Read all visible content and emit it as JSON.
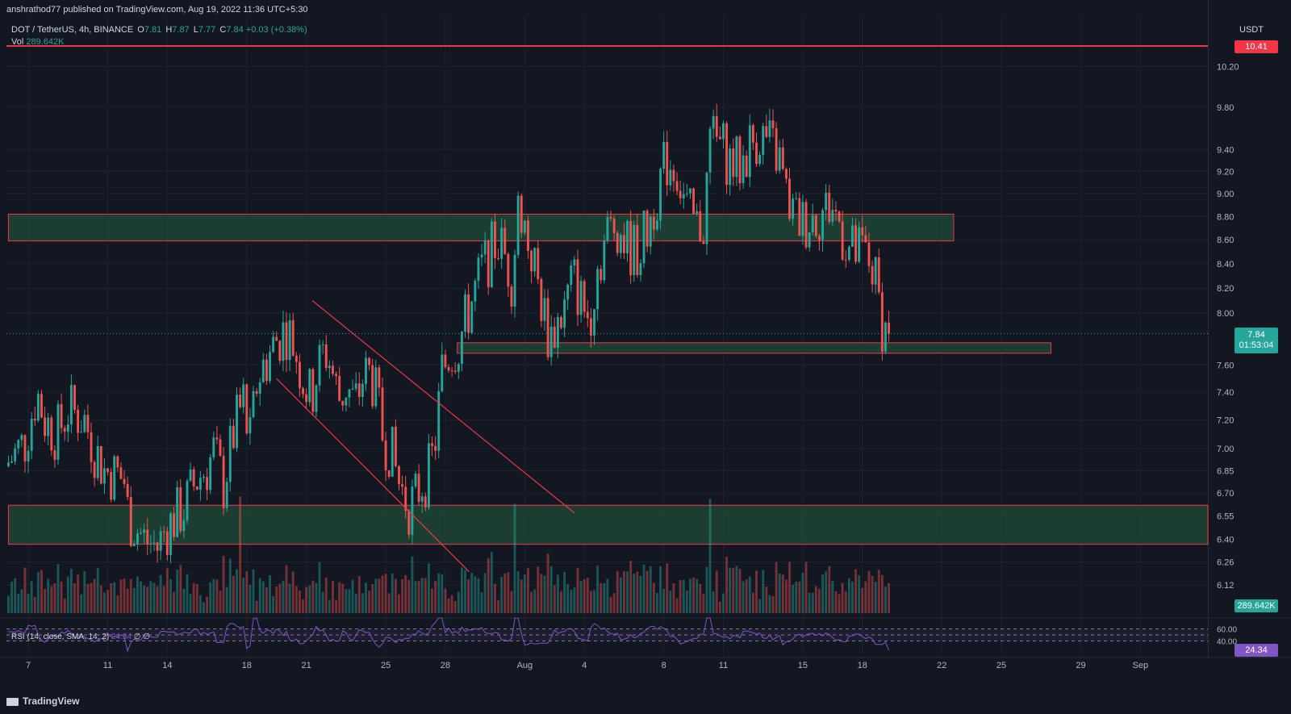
{
  "header": {
    "publisher": "anshrathod77 published on TradingView.com, Aug 19, 2022 11:36 UTC+5:30",
    "symbol": "DOT / TetherUS, 4h, BINANCE",
    "open_label": "O",
    "open": "7.81",
    "high_label": "H",
    "high": "7.87",
    "low_label": "L",
    "low": "7.77",
    "close_label": "C",
    "close": "7.84",
    "change": "+0.03 (+0.38%)",
    "volume_label": "Vol",
    "volume": "289.642K",
    "currency": "USDT"
  },
  "rsi": {
    "label": "RSI (14, close, SMA, 14, 2)",
    "value": "24.34",
    "extra": "∅ ∅",
    "ticks": [
      "60.00",
      "40.00"
    ]
  },
  "badges": {
    "resistance": "10.41",
    "last_price": "7.84",
    "countdown": "01:53:04",
    "volume": "289.642K",
    "rsi": "24.34"
  },
  "footer": {
    "logo_text": "TradingView"
  },
  "colors": {
    "background": "#131722",
    "bullish": "#26a69a",
    "bearish": "#ef5350",
    "zone_fill": "#1f4535",
    "zone_border": "#f23645",
    "rsi_line": "#7e57c2"
  },
  "chart_data": {
    "type": "candlestick",
    "symbol": "DOT/USDT",
    "timeframe": "4h",
    "y_scale": "log",
    "ylim": [
      6.0,
      10.6
    ],
    "y_ticks": [
      "10.20",
      "9.80",
      "9.40",
      "9.20",
      "9.00",
      "8.80",
      "8.60",
      "8.40",
      "8.20",
      "8.00",
      "7.60",
      "7.40",
      "7.20",
      "7.00",
      "6.85",
      "6.70",
      "6.55",
      "6.40",
      "6.26",
      "6.12"
    ],
    "x_ticks": [
      "7",
      "11",
      "14",
      "18",
      "21",
      "25",
      "28",
      "Aug",
      "4",
      "8",
      "11",
      "15",
      "18",
      "22",
      "25",
      "29",
      "Sep"
    ],
    "x_tick_days": [
      -24,
      -20,
      -17,
      -13,
      -10,
      -6,
      -3,
      1,
      4,
      8,
      11,
      15,
      18,
      22,
      25,
      29,
      32
    ],
    "x_range_days": [
      -25.1,
      35.4
    ],
    "last_bar_day": 19.4,
    "price_path": [
      [
        -25,
        6.88
      ],
      [
        -24,
        7.05
      ],
      [
        -23.4,
        7.4
      ],
      [
        -23,
        7.2
      ],
      [
        -22.4,
        7.1
      ],
      [
        -21.8,
        7.28
      ],
      [
        -21,
        7.2
      ],
      [
        -20.5,
        7.0
      ],
      [
        -20,
        6.85
      ],
      [
        -19.3,
        6.82
      ],
      [
        -19,
        6.78
      ],
      [
        -18.8,
        6.55
      ],
      [
        -18,
        6.4
      ],
      [
        -17.3,
        6.35
      ],
      [
        -17,
        6.45
      ],
      [
        -16.4,
        6.55
      ],
      [
        -16,
        6.6
      ],
      [
        -15.4,
        6.78
      ],
      [
        -14.8,
        6.88
      ],
      [
        -14.5,
        6.98
      ],
      [
        -14,
        6.75
      ],
      [
        -13.5,
        7.1
      ],
      [
        -13,
        7.35
      ],
      [
        -12.7,
        7.0
      ],
      [
        -12.3,
        7.5
      ],
      [
        -11.8,
        7.65
      ],
      [
        -11.3,
        7.8
      ],
      [
        -10.8,
        7.88
      ],
      [
        -10.4,
        7.72
      ],
      [
        -10,
        7.5
      ],
      [
        -9.6,
        7.35
      ],
      [
        -9.3,
        7.55
      ],
      [
        -8.9,
        7.72
      ],
      [
        -8.6,
        7.6
      ],
      [
        -8.2,
        7.35
      ],
      [
        -7.8,
        7.45
      ],
      [
        -7.4,
        7.3
      ],
      [
        -7,
        7.5
      ],
      [
        -6.6,
        7.55
      ],
      [
        -6.3,
        7.35
      ],
      [
        -6,
        7.1
      ],
      [
        -5.6,
        7.0
      ],
      [
        -5.2,
        6.78
      ],
      [
        -4.7,
        6.62
      ],
      [
        -4.4,
        6.65
      ],
      [
        -4.0,
        6.78
      ],
      [
        -3.6,
        6.85
      ],
      [
        -3.3,
        7.1
      ],
      [
        -3.0,
        7.55
      ],
      [
        -2.6,
        7.7
      ],
      [
        -2.2,
        7.75
      ],
      [
        -1.8,
        7.95
      ],
      [
        -1.4,
        8.15
      ],
      [
        -1.0,
        8.35
      ],
      [
        -0.6,
        8.48
      ],
      [
        -0.2,
        8.6
      ],
      [
        0.2,
        8.45
      ],
      [
        0.5,
        8.3
      ],
      [
        0.9,
        8.95
      ],
      [
        1.3,
        8.6
      ],
      [
        1.6,
        8.42
      ],
      [
        2.0,
        8.1
      ],
      [
        2.4,
        7.8
      ],
      [
        2.8,
        7.92
      ],
      [
        3.2,
        8.05
      ],
      [
        3.6,
        8.3
      ],
      [
        4.0,
        8.1
      ],
      [
        4.4,
        7.95
      ],
      [
        4.8,
        8.35
      ],
      [
        5.3,
        8.65
      ],
      [
        5.8,
        8.75
      ],
      [
        6.3,
        8.55
      ],
      [
        6.8,
        8.5
      ],
      [
        7.3,
        8.65
      ],
      [
        7.8,
        9.0
      ],
      [
        8.3,
        9.3
      ],
      [
        8.8,
        9.25
      ],
      [
        9.3,
        8.85
      ],
      [
        9.8,
        8.7
      ],
      [
        10.2,
        8.75
      ],
      [
        10.5,
        9.5
      ],
      [
        11,
        9.45
      ],
      [
        11.5,
        9.3
      ],
      [
        12,
        9.25
      ],
      [
        12.5,
        9.45
      ],
      [
        13,
        9.55
      ],
      [
        13.5,
        9.45
      ],
      [
        14,
        9.3
      ],
      [
        14.3,
        9.0
      ],
      [
        14.7,
        8.8
      ],
      [
        15.2,
        8.75
      ],
      [
        15.7,
        8.8
      ],
      [
        16.2,
        8.85
      ],
      [
        16.6,
        8.9
      ],
      [
        17.0,
        8.75
      ],
      [
        17.4,
        8.55
      ],
      [
        17.8,
        8.48
      ],
      [
        18.2,
        8.5
      ],
      [
        18.6,
        8.4
      ],
      [
        18.9,
        8.2
      ],
      [
        19.2,
        7.9
      ],
      [
        19.4,
        7.84
      ]
    ],
    "volume": {
      "unit": "K",
      "spikes": [
        [
          "Jul 19",
          "high"
        ],
        [
          "Aug 1",
          "high"
        ],
        [
          "Aug 10",
          "high"
        ]
      ],
      "last": "289.642K"
    },
    "rsi": {
      "period": 14,
      "last": 24.34,
      "upper": 60,
      "lower": 40
    },
    "annotations": {
      "resistance_line": 10.41,
      "last_price": 7.84,
      "zones": [
        {
          "low": 8.59,
          "high": 8.82,
          "from_day": -25,
          "to_day": 22.6
        },
        {
          "low": 7.69,
          "high": 7.77,
          "from_day": -2.4,
          "to_day": 27.5
        },
        {
          "low": 6.37,
          "high": 6.62,
          "from_day": -25,
          "to_day": 35.4
        }
      ],
      "channel_lines": [
        {
          "from": [
            -9.7,
            8.1
          ],
          "to": [
            3.5,
            6.57
          ]
        },
        {
          "from": [
            -11.5,
            7.5
          ],
          "to": [
            -1.8,
            6.2
          ]
        }
      ]
    }
  }
}
